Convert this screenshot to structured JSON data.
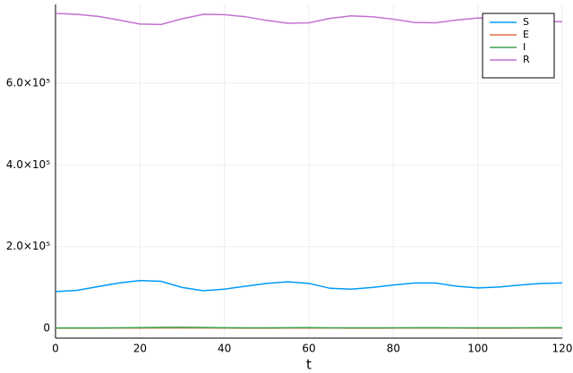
{
  "chart_data": {
    "type": "line",
    "x": [
      0,
      5,
      10,
      15,
      20,
      25,
      30,
      35,
      40,
      45,
      50,
      55,
      60,
      65,
      70,
      75,
      80,
      85,
      90,
      95,
      100,
      105,
      110,
      115,
      120
    ],
    "series": [
      {
        "name": "S",
        "color": "#009af9",
        "values": [
          90000,
          93000,
          102000,
          111000,
          117000,
          115000,
          100000,
          92000,
          96000,
          103000,
          110000,
          114000,
          110000,
          98000,
          96000,
          100000,
          106000,
          111000,
          111000,
          103000,
          99000,
          101000,
          106000,
          110000,
          111000
        ]
      },
      {
        "name": "E",
        "color": "#e26f46",
        "values": [
          400,
          400,
          500,
          600,
          700,
          900,
          1000,
          800,
          600,
          500,
          500,
          600,
          700,
          600,
          500,
          500,
          600,
          700,
          700,
          600,
          500,
          500,
          600,
          600,
          600
        ]
      },
      {
        "name": "I",
        "color": "#3da44d",
        "values": [
          800,
          800,
          1000,
          1300,
          1700,
          2200,
          2500,
          2000,
          1500,
          1200,
          1200,
          1400,
          1600,
          1300,
          1100,
          1100,
          1300,
          1500,
          1500,
          1300,
          1100,
          1100,
          1300,
          1400,
          1400
        ]
      },
      {
        "name": "R",
        "color": "#c271d2",
        "values": [
          771000,
          769000,
          764000,
          755000,
          745000,
          744000,
          758000,
          769000,
          768000,
          763000,
          754000,
          747000,
          748000,
          759000,
          765000,
          763000,
          757000,
          749000,
          748000,
          755000,
          760000,
          759000,
          755000,
          751000,
          751000
        ]
      }
    ],
    "xlim": [
      0,
      120
    ],
    "xticks": [
      0,
      20,
      40,
      60,
      80,
      100,
      120
    ],
    "ylim": [
      -24000,
      793000
    ],
    "yticks": [
      0,
      {
        "value": 200000,
        "label": "2.0×10⁵"
      },
      {
        "value": 400000,
        "label": "4.0×10⁵"
      },
      {
        "value": 600000,
        "label": "6.0×10⁵"
      }
    ],
    "xlabel": "t",
    "grid": true,
    "legend": "top-right"
  }
}
